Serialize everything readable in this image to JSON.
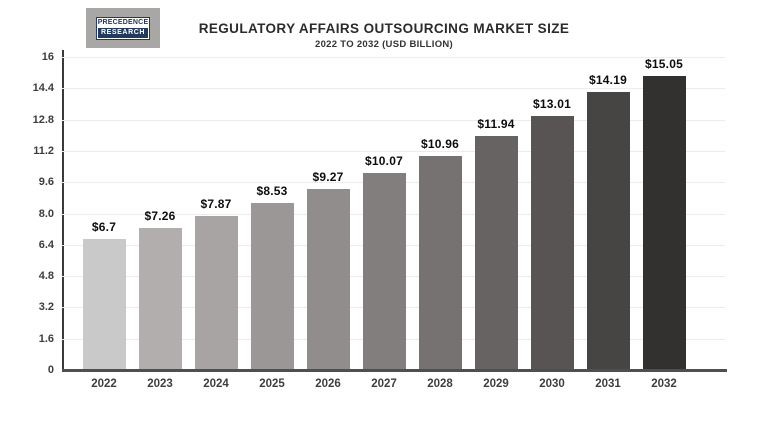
{
  "logo": {
    "line1": "PRECEDENCE",
    "line2": "RESEARCH",
    "navy": "#223a5e",
    "tile_gray": "#a9a6a6"
  },
  "header": {
    "title": "REGULATORY AFFAIRS OUTSOURCING MARKET SIZE",
    "subtitle": "2022 TO 2032 (USD BILLION)"
  },
  "chart_data": {
    "type": "bar",
    "title": "REGULATORY AFFAIRS OUTSOURCING MARKET SIZE",
    "subtitle": "2022 TO 2032 (USD BILLION)",
    "categories": [
      "2022",
      "2023",
      "2024",
      "2025",
      "2026",
      "2027",
      "2028",
      "2029",
      "2030",
      "2031",
      "2032"
    ],
    "values": [
      6.7,
      7.26,
      7.87,
      8.53,
      9.27,
      10.07,
      10.96,
      11.94,
      13.01,
      14.19,
      15.05
    ],
    "value_labels": [
      "$6.7",
      "$7.26",
      "$7.87",
      "$8.53",
      "$9.27",
      "$10.07",
      "$10.96",
      "$11.94",
      "$13.01",
      "$14.19",
      "$15.05"
    ],
    "bar_colors": [
      "#c9c9c9",
      "#b3aeae",
      "#a8a4a4",
      "#9c9797",
      "#918d8d",
      "#827e7e",
      "#767272",
      "#676363",
      "#585454",
      "#474444",
      "#333030"
    ],
    "ylim": [
      0,
      16
    ],
    "yticks": [
      0,
      1.6,
      3.2,
      4.8,
      6.4,
      8.0,
      9.6,
      11.2,
      12.8,
      14.4,
      16
    ],
    "ytick_labels": [
      "0",
      "1.6",
      "3.2",
      "4.8",
      "6.4",
      "8.0",
      "9.6",
      "11.2",
      "12.8",
      "14.4",
      "16"
    ],
    "xlabel": "",
    "ylabel": "",
    "grid": "horizontal",
    "legend": "none",
    "axis_color": "#3a3a3a",
    "gridline_color": "#ececec"
  }
}
